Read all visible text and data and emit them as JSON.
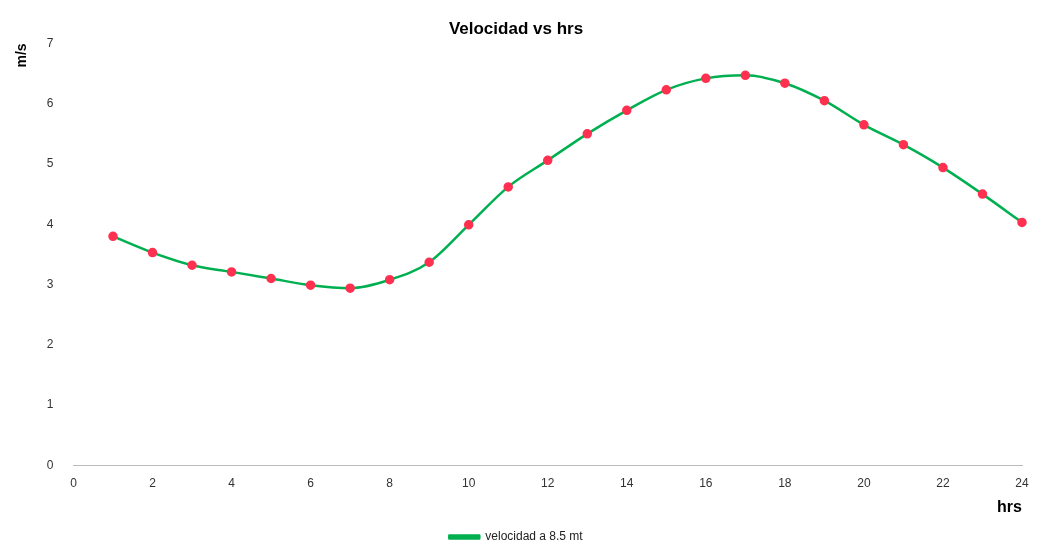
{
  "chart_data": {
    "type": "line",
    "title": "Velocidad vs hrs",
    "xlabel": "hrs",
    "ylabel": "m/s",
    "x": [
      1,
      2,
      3,
      4,
      5,
      6,
      7,
      8,
      9,
      10,
      11,
      12,
      13,
      14,
      15,
      16,
      17,
      18,
      19,
      20,
      21,
      22,
      23,
      24
    ],
    "series": [
      {
        "name": "velocidad a 8.5 mt",
        "color": "#00b050",
        "colors": [
          "#ff3050",
          "#ff3050",
          "#ff3050",
          "#ff3050",
          "#ff3050",
          "#ff3050",
          "#ff3050",
          "#ff3050",
          "#ff3050",
          "#ff3050",
          "#ff3050",
          "#ff3050",
          "#ff3050",
          "#ff3050",
          "#ff3050",
          "#ff3050",
          "#ff3050",
          "#ff3050",
          "#ff3050",
          "#ff3050",
          "#ff3050",
          "#ff3050",
          "#ff3050",
          "#ff3050"
        ],
        "values": [
          3.8,
          3.53,
          3.32,
          3.21,
          3.1,
          2.99,
          2.94,
          3.08,
          3.37,
          3.99,
          4.62,
          5.06,
          5.5,
          5.89,
          6.23,
          6.42,
          6.47,
          6.34,
          6.05,
          5.65,
          5.32,
          4.94,
          4.5,
          4.03
        ]
      }
    ],
    "xlim": [
      0,
      24
    ],
    "xticks": [
      0,
      2,
      4,
      6,
      8,
      10,
      12,
      14,
      16,
      18,
      20,
      22,
      24
    ],
    "ylim": [
      0,
      7
    ],
    "yticks": [
      0,
      1,
      2,
      3,
      4,
      5,
      6,
      7
    ],
    "grid": false,
    "legend": "bottom",
    "marker": "circle",
    "line_style": "solid"
  }
}
